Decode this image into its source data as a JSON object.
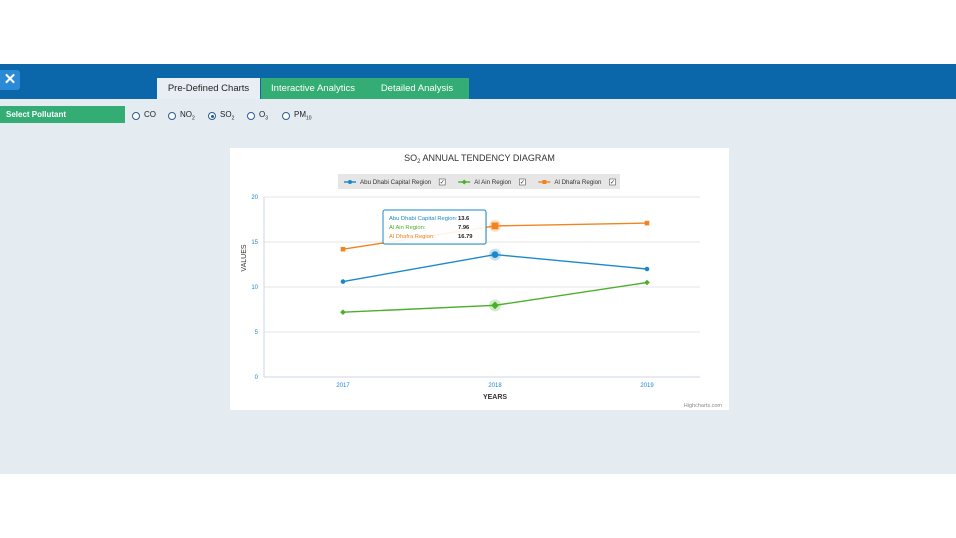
{
  "app": {
    "close_symbol": "✕",
    "tabs": [
      "Pre-Defined Charts",
      "Interactive Analytics",
      "Detailed Analysis"
    ],
    "active_tab": "Pre-Defined Charts"
  },
  "pollutant_selector": {
    "label": "Select Pollutant",
    "options": [
      {
        "main": "CO",
        "sub": ""
      },
      {
        "main": "NO",
        "sub": "2"
      },
      {
        "main": "SO",
        "sub": "2"
      },
      {
        "main": "O",
        "sub": "3"
      },
      {
        "main": "PM",
        "sub": "10"
      }
    ],
    "selected": "SO2"
  },
  "chart_data": {
    "type": "line",
    "title_main": "SO",
    "title_sub": "2",
    "title_rest": " ANNUAL TENDENCY DIAGRAM",
    "xlabel": "YEARS",
    "ylabel": "VALUES",
    "categories": [
      "2017",
      "2018",
      "2019"
    ],
    "ylim": [
      0,
      20
    ],
    "yticks": [
      "0",
      "5",
      "10",
      "15",
      "20"
    ],
    "grid": true,
    "legend_placement": "top-center",
    "series": [
      {
        "name": "Abu Dhabi Capital Region",
        "color": "#1c88c7",
        "marker": "circle",
        "values": [
          10.6,
          13.6,
          12.0
        ]
      },
      {
        "name": "Al Ain Region",
        "color": "#4caf2a",
        "marker": "diamond",
        "values": [
          7.2,
          7.96,
          10.5
        ]
      },
      {
        "name": "Al Dhafra Region",
        "color": "#f0851f",
        "marker": "square",
        "values": [
          14.2,
          16.79,
          17.1
        ]
      }
    ],
    "tooltip": {
      "category_index": 1,
      "rows": [
        {
          "label": "Abu Dhabi Capital Region:",
          "value": "13.6",
          "color": "#1c88c7"
        },
        {
          "label": "Al Ain Region:",
          "value": "7.96",
          "color": "#4caf2a"
        },
        {
          "label": "Al Dhafra Region:",
          "value": "16.79",
          "color": "#f0851f"
        }
      ]
    },
    "credits": "Highcharts.com"
  }
}
